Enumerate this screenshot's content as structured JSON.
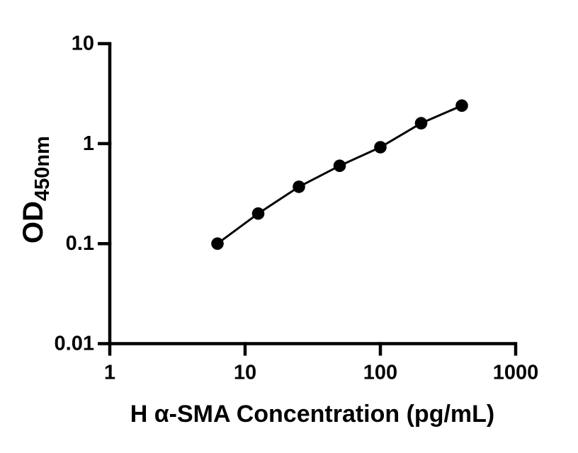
{
  "chart_data": {
    "type": "scatter",
    "title": "",
    "xlabel": "H α-SMA Concentration (pg/mL)",
    "ylabel": "OD450nm",
    "ylabel_main": "OD",
    "ylabel_sub": "450nm",
    "x_scale": "log10",
    "y_scale": "log10",
    "xlim": [
      1,
      1000
    ],
    "ylim": [
      0.01,
      10
    ],
    "x_tick_values": [
      1,
      10,
      100,
      1000
    ],
    "x_tick_labels": [
      "1",
      "10",
      "100",
      "1000"
    ],
    "y_tick_values": [
      10,
      1,
      0.1,
      0.01
    ],
    "y_tick_labels": [
      "10",
      "1",
      "0.1",
      "0.01"
    ],
    "x": [
      6.25,
      12.5,
      25,
      50,
      100,
      200,
      400
    ],
    "y": [
      0.1,
      0.2,
      0.37,
      0.6,
      0.92,
      1.6,
      2.4
    ],
    "grid": false,
    "legend": false,
    "colors": {
      "axis": "#000000",
      "line": "#000000",
      "marker": "#000000",
      "text": "#000000",
      "background": "#ffffff"
    }
  }
}
